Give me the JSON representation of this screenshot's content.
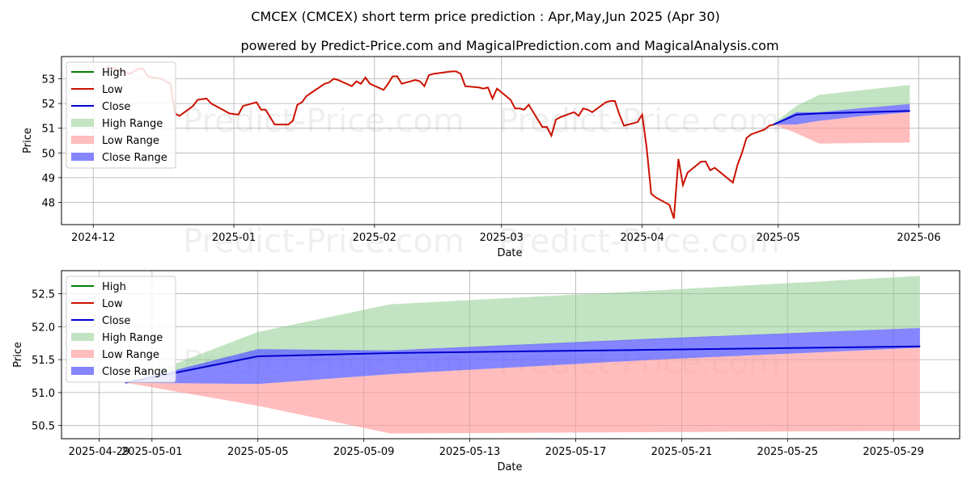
{
  "title": "CMCEX (CMCEX) short term price prediction : Apr,May,Jun 2025 (Apr 30)",
  "subtitle": "powered by Predict-Price.com and MagicalPrediction.com and MagicalAnalysis.com",
  "watermark": "Predict-Price.com",
  "colors": {
    "high": "#008000",
    "low": "#cc1100",
    "close": "#0000cc",
    "high_range": "#8fce8f",
    "low_range": "#ff9a9a",
    "close_range": "#6666ff"
  },
  "chart_data": [
    {
      "type": "line",
      "xlabel": "Date",
      "ylabel": "Price",
      "x_ticks": [
        "2024-12",
        "2025-01",
        "2025-02",
        "2025-03",
        "2025-04",
        "2025-05",
        "2025-06"
      ],
      "x_tick_dates": [
        "2024-12-01",
        "2025-01-01",
        "2025-02-01",
        "2025-03-01",
        "2025-04-01",
        "2025-05-01",
        "2025-06-01"
      ],
      "xlim": [
        "2024-11-24",
        "2025-06-10"
      ],
      "y_ticks": [
        "48",
        "49",
        "50",
        "51",
        "52",
        "53"
      ],
      "ylim": [
        47.1,
        53.9
      ],
      "grid": true,
      "legend": {
        "position": "top-left",
        "entries": [
          "High",
          "Low",
          "Close",
          "High Range",
          "Low Range",
          "Close Range"
        ]
      },
      "series": [
        {
          "name": "Low",
          "x": [
            "2024-12-04",
            "2024-12-06",
            "2024-12-09",
            "2024-12-11",
            "2024-12-12",
            "2024-12-13",
            "2024-12-16",
            "2024-12-17",
            "2024-12-18",
            "2024-12-19",
            "2024-12-20",
            "2024-12-23",
            "2024-12-24",
            "2024-12-26",
            "2024-12-27",
            "2024-12-30",
            "2024-12-31",
            "2025-01-02",
            "2025-01-03",
            "2025-01-06",
            "2025-01-07",
            "2025-01-08",
            "2025-01-10",
            "2025-01-13",
            "2025-01-14",
            "2025-01-15",
            "2025-01-16",
            "2025-01-17",
            "2025-01-21",
            "2025-01-22",
            "2025-01-23",
            "2025-01-24",
            "2025-01-27",
            "2025-01-28",
            "2025-01-29",
            "2025-01-30",
            "2025-01-31",
            "2025-02-03",
            "2025-02-04",
            "2025-02-05",
            "2025-02-06",
            "2025-02-07",
            "2025-02-10",
            "2025-02-11",
            "2025-02-12",
            "2025-02-13",
            "2025-02-14",
            "2025-02-18",
            "2025-02-19",
            "2025-02-20",
            "2025-02-21",
            "2025-02-24",
            "2025-02-25",
            "2025-02-26",
            "2025-02-27",
            "2025-02-28",
            "2025-03-03",
            "2025-03-04",
            "2025-03-05",
            "2025-03-06",
            "2025-03-07",
            "2025-03-10",
            "2025-03-11",
            "2025-03-12",
            "2025-03-13",
            "2025-03-14",
            "2025-03-17",
            "2025-03-18",
            "2025-03-19",
            "2025-03-20",
            "2025-03-21",
            "2025-03-24",
            "2025-03-25",
            "2025-03-26",
            "2025-03-27",
            "2025-03-28",
            "2025-03-31",
            "2025-04-01",
            "2025-04-02",
            "2025-04-03",
            "2025-04-04",
            "2025-04-07",
            "2025-04-08",
            "2025-04-09",
            "2025-04-10",
            "2025-04-11",
            "2025-04-14",
            "2025-04-15",
            "2025-04-16",
            "2025-04-17",
            "2025-04-21",
            "2025-04-22",
            "2025-04-23",
            "2025-04-24",
            "2025-04-25",
            "2025-04-28",
            "2025-04-29",
            "2025-04-30"
          ],
          "values": [
            53.5,
            53.4,
            53.2,
            53.4,
            53.4,
            53.1,
            53.0,
            52.9,
            52.8,
            51.6,
            51.5,
            51.9,
            52.15,
            52.2,
            52.0,
            51.7,
            51.6,
            51.55,
            51.9,
            52.05,
            51.75,
            51.75,
            51.15,
            51.15,
            51.3,
            51.95,
            52.05,
            52.3,
            52.8,
            52.85,
            53.0,
            52.95,
            52.7,
            52.9,
            52.8,
            53.05,
            52.8,
            52.55,
            52.8,
            53.1,
            53.1,
            52.8,
            52.95,
            52.9,
            52.7,
            53.15,
            53.2,
            53.3,
            53.3,
            53.2,
            52.7,
            52.65,
            52.6,
            52.65,
            52.2,
            52.6,
            52.15,
            51.8,
            51.8,
            51.75,
            51.95,
            51.05,
            51.05,
            50.7,
            51.35,
            51.45,
            51.65,
            51.5,
            51.8,
            51.75,
            51.65,
            52.05,
            52.1,
            52.1,
            51.55,
            51.1,
            51.25,
            51.55,
            50.2,
            48.35,
            48.2,
            47.9,
            47.35,
            49.75,
            48.7,
            49.2,
            49.65,
            49.65,
            49.3,
            49.4,
            48.8,
            49.5,
            50.0,
            50.6,
            50.75,
            50.95,
            51.1,
            51.15
          ]
        },
        {
          "name": "Close",
          "x": [
            "2025-04-30",
            "2025-05-05",
            "2025-05-10",
            "2025-05-20",
            "2025-05-30"
          ],
          "values": [
            51.15,
            51.55,
            51.6,
            51.65,
            51.7
          ]
        },
        {
          "name": "High Range",
          "x": [
            "2025-04-30",
            "2025-05-05",
            "2025-05-10",
            "2025-05-20",
            "2025-05-30"
          ],
          "upper": [
            51.2,
            51.9,
            52.35,
            52.55,
            52.75
          ],
          "lower": [
            51.15,
            51.55,
            51.62,
            51.8,
            51.98
          ]
        },
        {
          "name": "Low Range",
          "x": [
            "2025-04-30",
            "2025-05-05",
            "2025-05-10",
            "2025-05-20",
            "2025-05-30"
          ],
          "upper": [
            51.15,
            51.15,
            51.3,
            51.5,
            51.65
          ],
          "lower": [
            51.15,
            50.8,
            50.38,
            50.4,
            50.42
          ]
        },
        {
          "name": "Close Range",
          "x": [
            "2025-04-30",
            "2025-05-05",
            "2025-05-10",
            "2025-05-20",
            "2025-05-30"
          ],
          "upper": [
            51.18,
            51.65,
            51.65,
            51.82,
            51.98
          ],
          "lower": [
            51.15,
            51.15,
            51.3,
            51.5,
            51.65
          ]
        }
      ]
    },
    {
      "type": "line",
      "xlabel": "Date",
      "ylabel": "Price",
      "x_ticks": [
        "2025-04-29",
        "2025-05-01",
        "2025-05-05",
        "2025-05-09",
        "2025-05-13",
        "2025-05-17",
        "2025-05-21",
        "2025-05-25",
        "2025-05-29"
      ],
      "x_tick_dates": [
        "2025-04-29",
        "2025-05-01",
        "2025-05-05",
        "2025-05-09",
        "2025-05-13",
        "2025-05-17",
        "2025-05-21",
        "2025-05-25",
        "2025-05-29"
      ],
      "xlim": [
        "2025-04-27T14:00",
        "2025-05-31T12:00"
      ],
      "y_ticks": [
        "50.5",
        "51.0",
        "51.5",
        "52.0",
        "52.5"
      ],
      "ylim": [
        50.3,
        52.85
      ],
      "grid": true,
      "legend": {
        "position": "top-left",
        "entries": [
          "High",
          "Low",
          "Close",
          "High Range",
          "Low Range",
          "Close Range"
        ]
      },
      "series": [
        {
          "name": "Close",
          "x": [
            "2025-04-30",
            "2025-05-05",
            "2025-05-10",
            "2025-05-20",
            "2025-05-30"
          ],
          "values": [
            51.15,
            51.55,
            51.6,
            51.65,
            51.7
          ]
        },
        {
          "name": "High Range",
          "x": [
            "2025-04-30",
            "2025-05-05",
            "2025-05-10",
            "2025-05-20",
            "2025-05-30"
          ],
          "upper": [
            51.15,
            51.92,
            52.34,
            52.55,
            52.77
          ],
          "lower": [
            51.15,
            51.55,
            51.63,
            51.8,
            51.98
          ]
        },
        {
          "name": "Low Range",
          "x": [
            "2025-04-30",
            "2025-05-05",
            "2025-05-10",
            "2025-05-20",
            "2025-05-30"
          ],
          "upper": [
            51.15,
            51.13,
            51.28,
            51.5,
            51.68
          ],
          "lower": [
            51.15,
            50.8,
            50.38,
            50.4,
            50.42
          ]
        },
        {
          "name": "Close Range",
          "x": [
            "2025-04-30",
            "2025-05-05",
            "2025-05-10",
            "2025-05-20",
            "2025-05-30"
          ],
          "upper": [
            51.15,
            51.66,
            51.64,
            51.82,
            51.98
          ],
          "lower": [
            51.15,
            51.13,
            51.28,
            51.5,
            51.68
          ]
        }
      ]
    }
  ]
}
